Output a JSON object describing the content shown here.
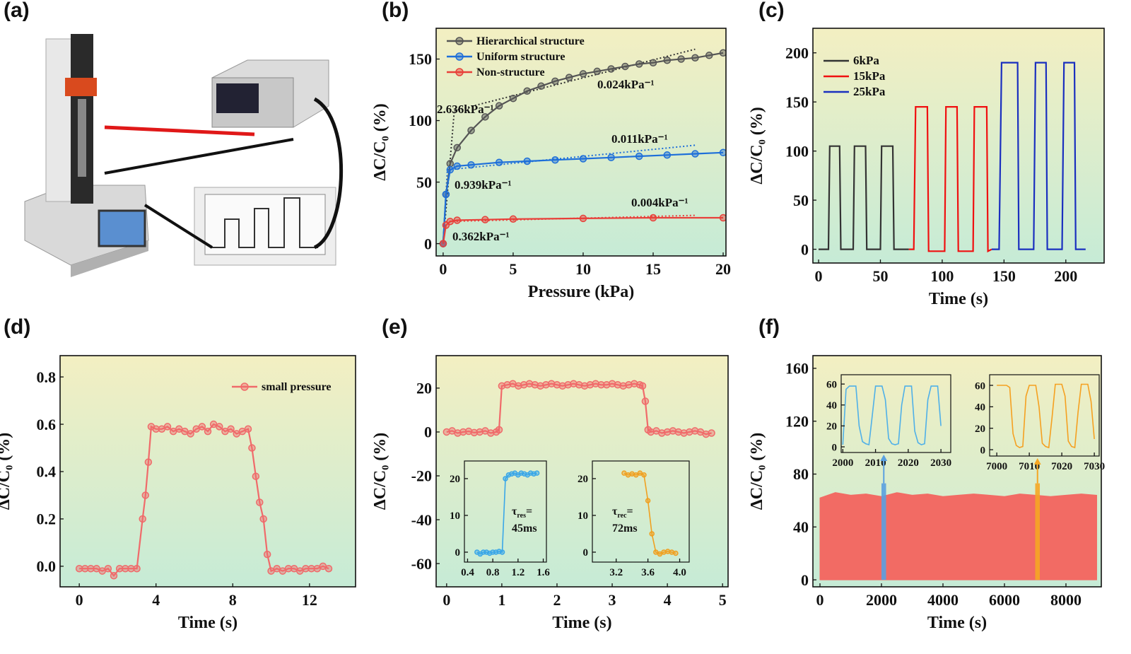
{
  "chart_data": [
    {
      "type": "illustration",
      "panel_label": "(a)"
    },
    {
      "type": "line",
      "panel_label": "(b)",
      "x_label": "Pressure (kPa)",
      "y_label": "ΔC/C₀ (%)",
      "xlim": [
        -0.5,
        20.2
      ],
      "ylim": [
        -10,
        175
      ],
      "xticks": [
        0,
        5,
        10,
        15,
        20
      ],
      "yticks": [
        0,
        50,
        100,
        150
      ],
      "legend": "upper-left",
      "marker": "circle",
      "series": [
        {
          "name": "Hierarchical structure",
          "color": "#555555",
          "x": [
            0,
            0.2,
            0.5,
            1,
            2,
            3,
            4,
            5,
            6,
            7,
            8,
            9,
            10,
            11,
            12,
            13,
            14,
            15,
            16,
            17,
            18,
            19,
            20
          ],
          "values": [
            0,
            40,
            65,
            78,
            92,
            103,
            112,
            118,
            124,
            128,
            132,
            135,
            138,
            140,
            142,
            144,
            146,
            147,
            149,
            150,
            151,
            153,
            155
          ]
        },
        {
          "name": "Uniform structure",
          "color": "#1e6fd9",
          "x": [
            0,
            0.2,
            0.5,
            1,
            2,
            4,
            6,
            8,
            10,
            12,
            14,
            16,
            18,
            20
          ],
          "values": [
            0,
            40,
            60,
            63,
            64,
            66,
            67,
            68,
            69,
            70,
            71,
            72,
            73,
            74
          ]
        },
        {
          "name": "Non-structure",
          "color": "#e8403a",
          "x": [
            0,
            0.2,
            0.5,
            1,
            3,
            5,
            10,
            15,
            20
          ],
          "values": [
            0,
            15,
            18,
            19,
            19.5,
            20,
            20.5,
            21,
            21
          ]
        }
      ],
      "fits": [
        {
          "color": "#333333",
          "x": [
            0,
            0.8
          ],
          "values": [
            0,
            108
          ]
        },
        {
          "color": "#333333",
          "x": [
            0.8,
            18
          ],
          "values": [
            108,
            158
          ]
        },
        {
          "color": "#1e6fd9",
          "x": [
            0,
            0.3
          ],
          "values": [
            0,
            60
          ]
        },
        {
          "color": "#1e6fd9",
          "x": [
            0.3,
            18
          ],
          "values": [
            60,
            80
          ]
        },
        {
          "color": "#e8403a",
          "x": [
            0,
            0.2
          ],
          "values": [
            0,
            18
          ]
        },
        {
          "color": "#e8403a",
          "x": [
            0.2,
            18
          ],
          "values": [
            18,
            23
          ]
        }
      ],
      "annotations": [
        {
          "text": "2.636kPa⁻¹",
          "color": "#555555"
        },
        {
          "text": "0.024kPa⁻¹",
          "color": "#555555"
        },
        {
          "text": "0.011kPa⁻¹",
          "color": "#1e6fd9"
        },
        {
          "text": "0.939kPa⁻¹",
          "color": "#1e6fd9"
        },
        {
          "text": "0.004kPa⁻¹",
          "color": "#e8403a"
        },
        {
          "text": "0.362kPa⁻¹",
          "color": "#e8403a"
        }
      ]
    },
    {
      "type": "line",
      "panel_label": "(c)",
      "x_label": "Time (s)",
      "y_label": "ΔC/C₀ (%)",
      "xlim": [
        -4.6,
        231
      ],
      "ylim": [
        -14,
        225
      ],
      "xticks": [
        0,
        50,
        100,
        150,
        200
      ],
      "yticks": [
        0,
        50,
        100,
        150,
        200
      ],
      "legend": "upper-left",
      "series": [
        {
          "name": "6kPa",
          "color": "#333333",
          "x": [
            0,
            8,
            9,
            17,
            18,
            28,
            29,
            38,
            39,
            50,
            51,
            60,
            61,
            73
          ],
          "values": [
            0,
            0,
            105,
            105,
            0,
            0,
            105,
            105,
            0,
            0,
            105,
            105,
            0,
            0
          ]
        },
        {
          "name": "15kPa",
          "color": "#f01010",
          "x": [
            73,
            77,
            78.5,
            88,
            89,
            102,
            103,
            112,
            113,
            125,
            126,
            136,
            137,
            140
          ],
          "values": [
            0,
            0,
            145,
            145,
            -2,
            -2,
            145,
            145,
            -2,
            -2,
            145,
            145,
            -2,
            0
          ]
        },
        {
          "name": "25kPa",
          "color": "#1a2fbf",
          "x": [
            140,
            146,
            148,
            161,
            162,
            174,
            175.5,
            184,
            185,
            197,
            198.5,
            207,
            208,
            216
          ],
          "values": [
            0,
            0,
            190,
            190,
            0,
            0,
            190,
            190,
            0,
            0,
            190,
            190,
            0,
            0
          ]
        }
      ]
    },
    {
      "type": "line",
      "panel_label": "(d)",
      "x_label": "Time (s)",
      "y_label": "ΔC/C₀ (%)",
      "xlim": [
        -1,
        14.4
      ],
      "ylim": [
        -0.087,
        0.89
      ],
      "xticks": [
        0,
        4,
        8,
        12
      ],
      "yticks": [
        {
          "value": 0,
          "label": "0.0"
        },
        0.2,
        0.4,
        0.6,
        0.8
      ],
      "legend": "upper-right",
      "marker": "circle",
      "series": [
        {
          "name": "small pressure",
          "color": "#f06a6a",
          "x": [
            0,
            0.3,
            0.6,
            0.9,
            1.2,
            1.5,
            1.8,
            2.1,
            2.4,
            2.7,
            3.0,
            3.3,
            3.45,
            3.6,
            3.75,
            4.0,
            4.3,
            4.6,
            4.9,
            5.2,
            5.5,
            5.8,
            6.1,
            6.4,
            6.7,
            7.0,
            7.3,
            7.6,
            7.9,
            8.2,
            8.5,
            8.8,
            9.0,
            9.2,
            9.4,
            9.6,
            9.8,
            10.0,
            10.3,
            10.6,
            10.9,
            11.2,
            11.5,
            11.8,
            12.1,
            12.4,
            12.7,
            13.0
          ],
          "values": [
            -0.01,
            -0.01,
            -0.01,
            -0.01,
            -0.02,
            -0.01,
            -0.04,
            -0.01,
            -0.01,
            -0.01,
            -0.01,
            0.2,
            0.3,
            0.44,
            0.59,
            0.58,
            0.58,
            0.59,
            0.57,
            0.58,
            0.57,
            0.56,
            0.58,
            0.59,
            0.57,
            0.6,
            0.59,
            0.57,
            0.58,
            0.56,
            0.57,
            0.58,
            0.5,
            0.38,
            0.27,
            0.2,
            0.05,
            -0.02,
            -0.01,
            -0.02,
            -0.01,
            -0.01,
            -0.02,
            -0.01,
            -0.01,
            -0.01,
            0,
            -0.01
          ]
        }
      ]
    },
    {
      "type": "line",
      "panel_label": "(e)",
      "x_label": "Time (s)",
      "y_label": "ΔC/C₀ (%)",
      "xlim": [
        -0.19,
        5.1
      ],
      "ylim": [
        -70.6,
        34.8
      ],
      "xticks": [
        0,
        1,
        2,
        3,
        4,
        5
      ],
      "yticks": [
        -60,
        -40,
        -20,
        0,
        20
      ],
      "marker": "circle",
      "series": [
        {
          "color": "#f06a6a",
          "x": [
            0,
            0.1,
            0.2,
            0.3,
            0.4,
            0.5,
            0.6,
            0.7,
            0.8,
            0.9,
            0.95,
            1.0,
            1.1,
            1.2,
            1.3,
            1.4,
            1.5,
            1.6,
            1.7,
            1.8,
            1.9,
            2.0,
            2.1,
            2.2,
            2.3,
            2.4,
            2.5,
            2.6,
            2.7,
            2.8,
            2.9,
            3.0,
            3.1,
            3.2,
            3.3,
            3.4,
            3.5,
            3.55,
            3.6,
            3.65,
            3.7,
            3.8,
            3.9,
            4.0,
            4.1,
            4.2,
            4.3,
            4.4,
            4.5,
            4.6,
            4.7,
            4.8
          ],
          "values": [
            0,
            0.5,
            -0.5,
            0,
            0.3,
            -0.3,
            0,
            0.5,
            -0.5,
            0,
            1,
            21,
            21.5,
            22,
            21,
            21.5,
            22,
            21.5,
            21,
            21.5,
            22,
            21.5,
            21,
            21.5,
            22,
            21.5,
            21,
            21.5,
            22,
            21.5,
            21.5,
            22,
            21.5,
            21,
            21.5,
            22,
            21.5,
            21,
            14,
            1,
            0,
            0.5,
            -0.5,
            0,
            0.5,
            0,
            -0.5,
            0,
            0.5,
            0,
            -1,
            -0.5
          ]
        }
      ],
      "insets": [
        {
          "xlim": [
            0.35,
            1.65
          ],
          "ylim": [
            -2.7,
            24.8
          ],
          "xticks": [
            0.4,
            0.8,
            1.2,
            1.6
          ],
          "yticks": [
            0,
            10,
            20
          ],
          "marker": "circle",
          "series": [
            {
              "color": "#3aa7e8",
              "x": [
                0.55,
                0.6,
                0.65,
                0.7,
                0.75,
                0.8,
                0.85,
                0.9,
                0.95,
                1.0,
                1.05,
                1.1,
                1.15,
                1.2,
                1.25,
                1.3,
                1.35,
                1.4,
                1.45,
                1.5
              ],
              "values": [
                0,
                -0.5,
                0,
                0,
                -0.3,
                0,
                0,
                0.2,
                0,
                20,
                21,
                21.3,
                21.5,
                21,
                21.5,
                21.3,
                21,
                21.5,
                21.3,
                21.5
              ]
            }
          ],
          "annotation": {
            "symbol": "τ",
            "sub": "res",
            "eq": "=",
            "value": "45ms"
          }
        },
        {
          "xlim": [
            2.9,
            4.12
          ],
          "ylim": [
            -2.7,
            24.8
          ],
          "xticks": [
            3.2,
            3.6,
            {
              "value": 4,
              "label": "4.0"
            }
          ],
          "yticks": [
            0,
            10,
            20
          ],
          "marker": "circle",
          "series": [
            {
              "color": "#f0a020",
              "x": [
                3.3,
                3.35,
                3.4,
                3.45,
                3.5,
                3.55,
                3.6,
                3.65,
                3.7,
                3.75,
                3.8,
                3.85,
                3.9,
                3.95
              ],
              "values": [
                21.5,
                21,
                21.3,
                21,
                21.5,
                21,
                14,
                5,
                0,
                -0.5,
                0,
                0.2,
                0,
                -0.3
              ]
            }
          ],
          "annotation": {
            "symbol": "τ",
            "sub": "rec",
            "eq": "=",
            "value": "72ms"
          }
        }
      ]
    },
    {
      "type": "area",
      "panel_label": "(f)",
      "x_label": "Time (s)",
      "y_label": "ΔC/C₀ (%)",
      "xlim": [
        -230,
        9150
      ],
      "ylim": [
        -5.3,
        169.6
      ],
      "xticks": [
        0,
        2000,
        4000,
        6000,
        8000
      ],
      "yticks": [
        0,
        40,
        80,
        120,
        160
      ],
      "series": [
        {
          "color": "#f26b64",
          "x": [
            0,
            500,
            1000,
            1500,
            2000,
            2500,
            3000,
            3500,
            4000,
            4500,
            5000,
            5500,
            6000,
            6500,
            7000,
            7500,
            8000,
            8500,
            9000
          ],
          "values": [
            62,
            66,
            64,
            65,
            63,
            66,
            64,
            65,
            63,
            64,
            65,
            64,
            63,
            65,
            64,
            63,
            64,
            65,
            64
          ]
        }
      ],
      "highlights": [
        {
          "color": "#5aa0e0",
          "x": [
            2000,
            2150
          ],
          "value": 73
        },
        {
          "color": "#f5a623",
          "x": [
            7000,
            7150
          ],
          "value": 73
        }
      ],
      "insets": [
        {
          "type": "line",
          "xlim": [
            1999.5,
            2033
          ],
          "ylim": [
            -5.4,
            68.9
          ],
          "xticks": [
            2000,
            2010,
            2020,
            2030
          ],
          "yticks": [
            0,
            20,
            40,
            60
          ],
          "series": [
            {
              "color": "#4fb0e8",
              "x": [
                2000,
                2001,
                2002,
                2003,
                2004,
                2005,
                2006,
                2007,
                2008,
                2009,
                2010,
                2011,
                2012,
                2013,
                2014,
                2015,
                2016,
                2017,
                2018,
                2019,
                2020,
                2021,
                2022,
                2023,
                2024,
                2025,
                2026,
                2027,
                2028,
                2029,
                2030
              ],
              "values": [
                2,
                55,
                58,
                58,
                58,
                20,
                5,
                3,
                2,
                30,
                58,
                58,
                58,
                45,
                8,
                3,
                2,
                3,
                40,
                58,
                58,
                58,
                15,
                4,
                2,
                3,
                45,
                58,
                58,
                58,
                20
              ]
            }
          ]
        },
        {
          "type": "line",
          "xlim": [
            6997.8,
            7031.5
          ],
          "ylim": [
            -5.9,
            69.9
          ],
          "xticks": [
            7000,
            7010,
            7020,
            7030
          ],
          "yticks": [
            0,
            20,
            40,
            60
          ],
          "series": [
            {
              "color": "#f5a020",
              "x": [
                7000,
                7001,
                7002,
                7003,
                7004,
                7005,
                7006,
                7007,
                7008,
                7009,
                7010,
                7011,
                7012,
                7013,
                7014,
                7015,
                7016,
                7017,
                7018,
                7019,
                7020,
                7021,
                7022,
                7023,
                7024,
                7025,
                7026,
                7027,
                7028,
                7029,
                7030
              ],
              "values": [
                60,
                60,
                60,
                60,
                58,
                15,
                4,
                2,
                3,
                50,
                60,
                60,
                60,
                40,
                6,
                3,
                2,
                30,
                61,
                61,
                61,
                50,
                8,
                3,
                2,
                35,
                61,
                61,
                61,
                45,
                10
              ]
            }
          ]
        }
      ]
    }
  ]
}
